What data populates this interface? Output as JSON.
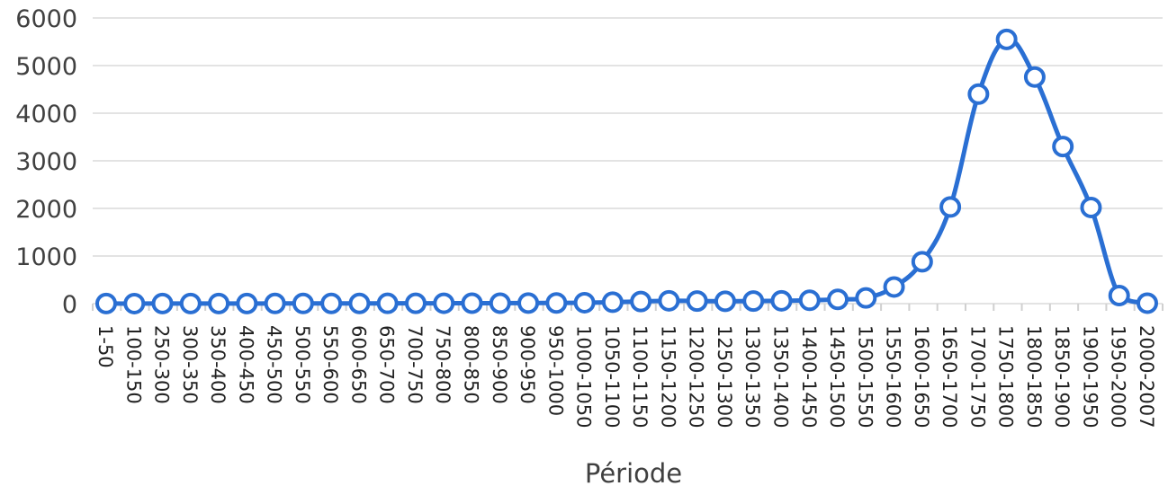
{
  "chart_data": {
    "type": "line",
    "xlabel": "Période",
    "ylabel": "",
    "ylim": [
      0,
      6000
    ],
    "yticks": [
      0,
      1000,
      2000,
      3000,
      4000,
      5000,
      6000
    ],
    "grid": true,
    "colors": {
      "line": "#2a6fd3",
      "marker_fill": "#ffffff",
      "grid": "#e3e3e3"
    },
    "categories": [
      "1-50",
      "100-150",
      "250-300",
      "300-350",
      "350-400",
      "400-450",
      "450-500",
      "500-550",
      "550-600",
      "600-650",
      "650-700",
      "700-750",
      "750-800",
      "800-850",
      "850-900",
      "900-950",
      "950-1000",
      "1000-1050",
      "1050-1100",
      "1100-1150",
      "1150-1200",
      "1200-1250",
      "1250-1300",
      "1300-1350",
      "1350-1400",
      "1400-1450",
      "1450-1500",
      "1500-1550",
      "1550-1600",
      "1600-1650",
      "1650-1700",
      "1700-1750",
      "1750-1800",
      "1800-1850",
      "1850-1900",
      "1900-1950",
      "1950-2000",
      "2000-2007"
    ],
    "values": [
      2,
      1,
      3,
      2,
      3,
      3,
      4,
      4,
      5,
      5,
      6,
      7,
      8,
      9,
      10,
      12,
      15,
      20,
      30,
      45,
      60,
      55,
      50,
      55,
      60,
      70,
      90,
      120,
      350,
      880,
      2030,
      4400,
      5550,
      4760,
      3300,
      2020,
      170,
      10
    ]
  }
}
